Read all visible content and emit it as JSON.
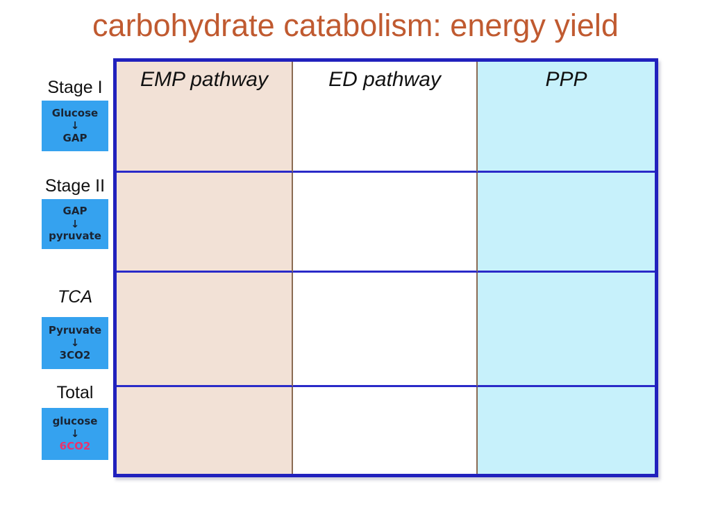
{
  "slide": {
    "title": "carbohydrate catabolism: energy yield"
  },
  "colors": {
    "title_text": "#C05A30",
    "table_border": "#2121BD",
    "row_divider": "#2A2AC8",
    "column_divider": "#8A6A52",
    "emp_column_bg": "#F2E1D6",
    "ed_column_bg": "#FFFFFF",
    "ppp_column_bg": "#C7F1FB",
    "stage_box_bg": "#35A2EF",
    "stage_box_text": "#1A2433",
    "total_product_text": "#E8336E"
  },
  "table": {
    "headers": [
      {
        "label": "EMP pathway"
      },
      {
        "label": "ED pathway"
      },
      {
        "label": "PPP"
      }
    ],
    "body_rows": 3,
    "body_cells_empty": true
  },
  "sidebar": {
    "stages": [
      {
        "label": "Stage I",
        "box": {
          "from": "Glucose",
          "arrow": "↓",
          "to": "GAP"
        }
      },
      {
        "label": "Stage II",
        "box": {
          "from": "GAP",
          "arrow": "↓",
          "to": "pyruvate"
        }
      },
      {
        "label": "TCA",
        "box": {
          "from": "Pyruvate",
          "arrow": "↓",
          "to": "3CO2"
        }
      },
      {
        "label": "Total",
        "box": {
          "from": "glucose",
          "arrow": "↓",
          "to": "6CO2"
        }
      }
    ]
  }
}
